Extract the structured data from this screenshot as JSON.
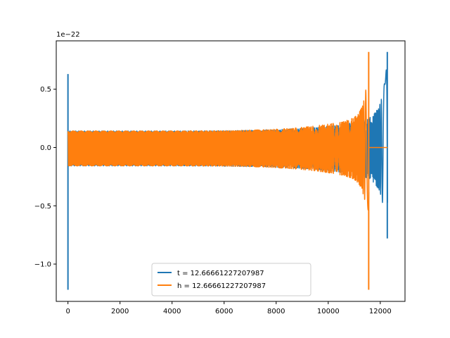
{
  "chart_data": {
    "type": "line",
    "title": "",
    "xlabel": "",
    "ylabel": "",
    "y_offset_label": "1e−22",
    "xlim": [
      -450,
      12950
    ],
    "ylim": [
      -1.32,
      0.915
    ],
    "xticks": [
      0,
      2000,
      4000,
      6000,
      8000,
      10000,
      12000
    ],
    "xtick_labels": [
      "0",
      "2000",
      "4000",
      "6000",
      "8000",
      "10000",
      "12000"
    ],
    "yticks": [
      -1.0,
      -0.5,
      0.0,
      0.5
    ],
    "ytick_labels": [
      "−1.0",
      "−0.5",
      "0.0",
      "0.5"
    ],
    "grid": false,
    "legend_position": "lower center",
    "series": [
      {
        "name": "t = 12.66661227207987",
        "color": "#1f77b4",
        "description": "oscillating waveform, spike at x=0, chirp ending near x=12280",
        "x_start": 0,
        "x_end": 12280,
        "start_spike": [
          -1.22,
          0.63
        ],
        "envelope_start": 0.15,
        "envelope_end_neg": -0.29,
        "merger_peak": [
          -0.78,
          0.82
        ],
        "merger_x": 12270
      },
      {
        "name": "h = 12.66661227207987",
        "color": "#ff7f0e",
        "description": "oscillating waveform drawn over blue, chirp ending near x=11560",
        "x_start": 0,
        "x_end": 11560,
        "envelope_start": 0.15,
        "merger_peak": [
          -1.22,
          0.82
        ],
        "merger_x": 11555
      }
    ]
  }
}
